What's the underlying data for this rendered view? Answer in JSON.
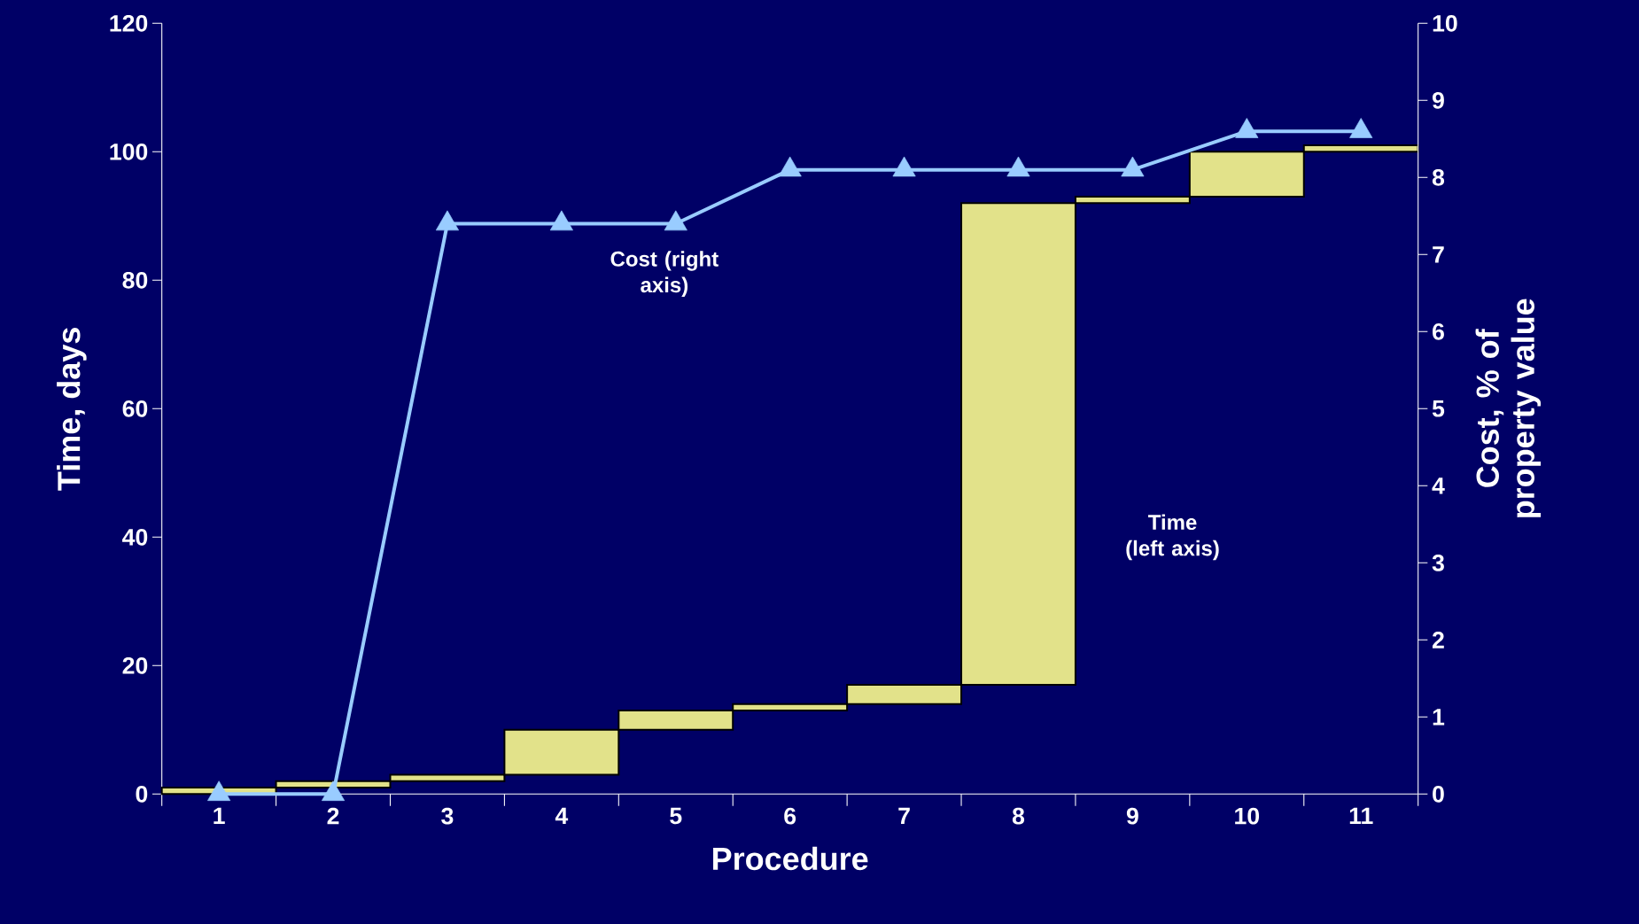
{
  "chart_data": {
    "type": "bar",
    "xlabel": "Procedure",
    "ylabel": "Time, days",
    "y2label": "Cost, % of property value",
    "categories": [
      "1",
      "2",
      "3",
      "4",
      "5",
      "6",
      "7",
      "8",
      "9",
      "10",
      "11"
    ],
    "series": [
      {
        "name": "Time (left axis)",
        "color": "#e2e28a",
        "values": [
          1,
          1,
          1,
          7,
          3,
          1,
          3,
          75,
          1,
          7,
          1
        ],
        "base": [
          0,
          1,
          2,
          3,
          10,
          13,
          14,
          17,
          92,
          93,
          100
        ]
      },
      {
        "name": "Cost (right axis)",
        "type": "line",
        "axis": "y2",
        "color": "#99ccff",
        "marker": "triangle",
        "values": [
          0,
          0,
          7.4,
          7.4,
          7.4,
          8.1,
          8.1,
          8.1,
          8.1,
          8.6,
          8.6
        ]
      }
    ],
    "ylim": [
      0,
      120
    ],
    "yticks": [
      0,
      20,
      40,
      60,
      80,
      100,
      120
    ],
    "y2lim": [
      0,
      10
    ],
    "y2ticks": [
      0,
      1,
      2,
      3,
      4,
      5,
      6,
      7,
      8,
      9,
      10
    ]
  }
}
